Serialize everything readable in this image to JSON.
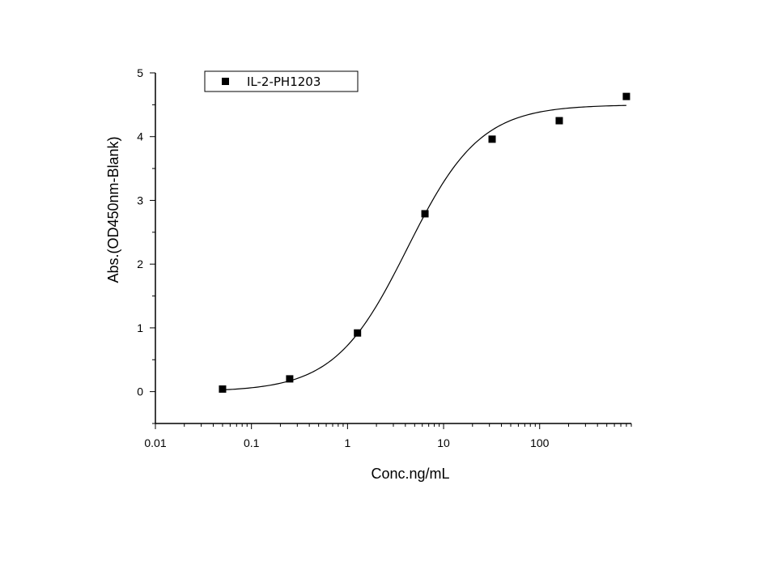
{
  "chart_data": {
    "type": "scatter",
    "xlabel": "Conc.ng/mL",
    "ylabel": "Abs.(OD450nm-Blank)",
    "x_scale": "log",
    "xlim": [
      0.01,
      900
    ],
    "ylim": [
      -0.5,
      5
    ],
    "x_ticks": [
      {
        "value": 0.01,
        "label": "0.01"
      },
      {
        "value": 0.1,
        "label": "0.1"
      },
      {
        "value": 1,
        "label": "1"
      },
      {
        "value": 10,
        "label": "10"
      },
      {
        "value": 100,
        "label": "100"
      }
    ],
    "y_ticks": [
      {
        "value": 0,
        "label": "0"
      },
      {
        "value": 1,
        "label": "1"
      },
      {
        "value": 2,
        "label": "2"
      },
      {
        "value": 3,
        "label": "3"
      },
      {
        "value": 4,
        "label": "4"
      },
      {
        "value": 5,
        "label": "5"
      }
    ],
    "series": [
      {
        "name": "IL-2-PH1203",
        "marker": "square",
        "color": "#000000",
        "x": [
          0.05,
          0.25,
          1.27,
          6.4,
          32,
          160,
          800
        ],
        "y": [
          0.04,
          0.2,
          0.92,
          2.79,
          3.96,
          4.25,
          4.63
        ]
      }
    ],
    "fit_curve": {
      "model": "4PL",
      "color": "#000000"
    },
    "legend": {
      "position": "top-left",
      "entries": [
        "IL-2-PH1203"
      ]
    },
    "grid": false
  }
}
